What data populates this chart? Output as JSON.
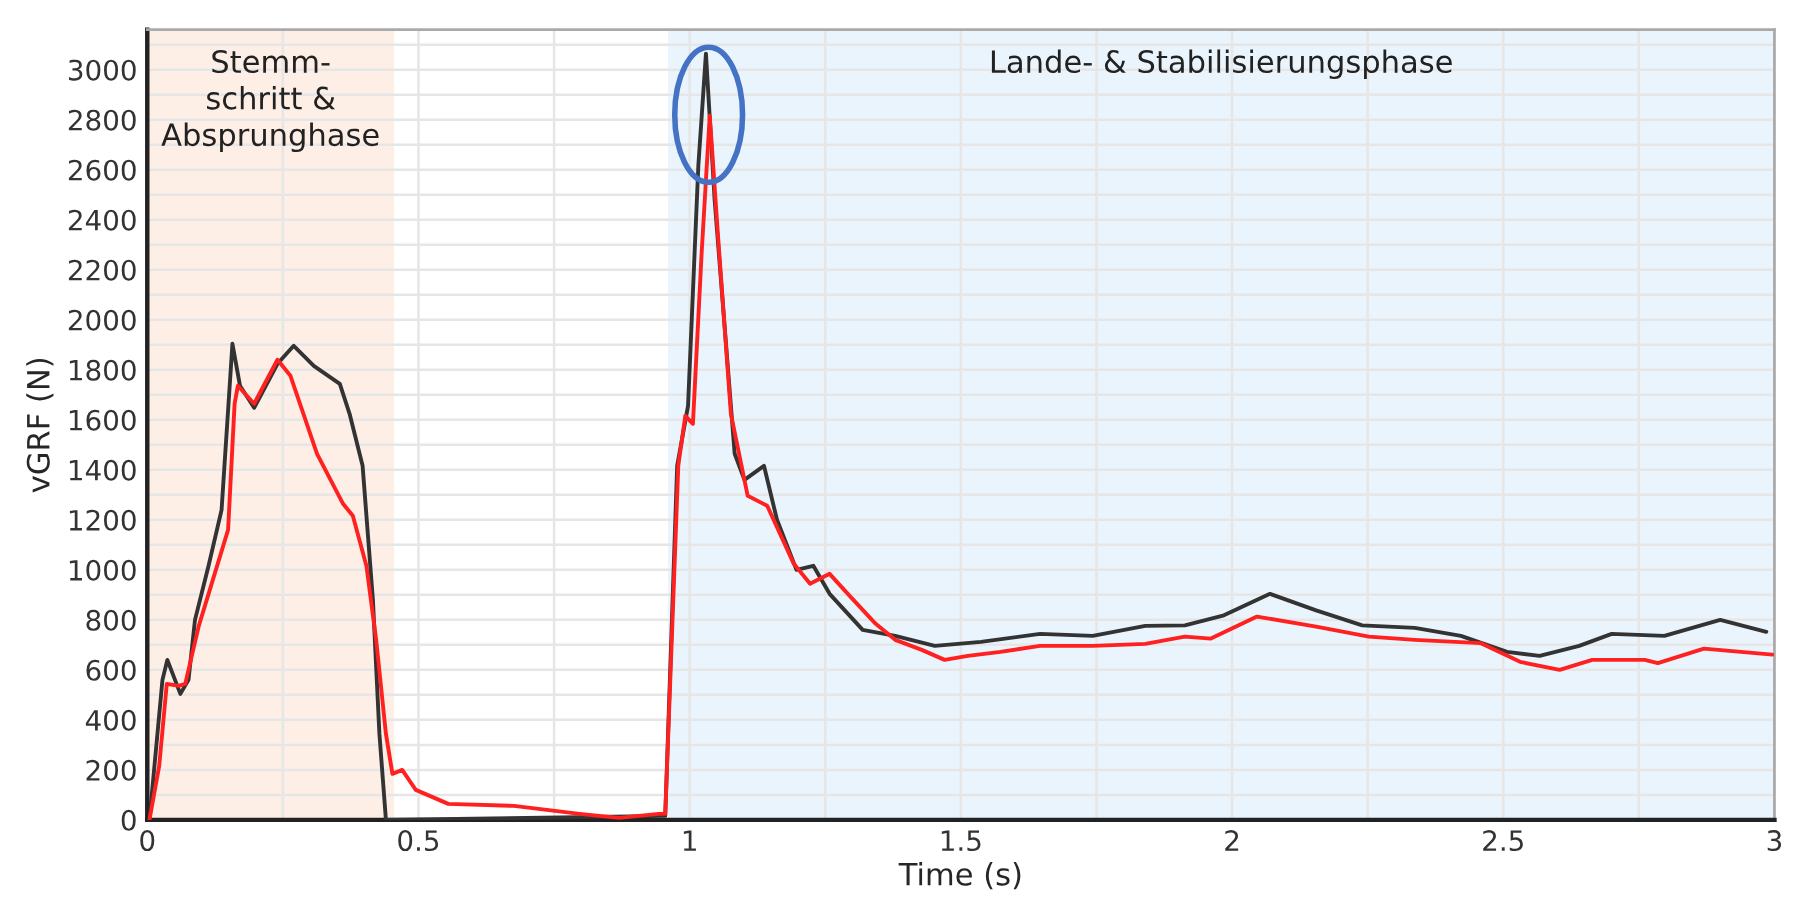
{
  "chart_data": {
    "type": "line",
    "xlabel": "Time (s)",
    "ylabel": "vGRF (N)",
    "xlim": [
      0,
      3
    ],
    "ylim": [
      0,
      3160
    ],
    "xticks": [
      0,
      {
        "value": 0.25,
        "label": null
      },
      0.5,
      {
        "value": 0.75,
        "label": null
      },
      1,
      {
        "value": 1.25,
        "label": null
      },
      1.5,
      {
        "value": 1.75,
        "label": null
      },
      2,
      {
        "value": 2.25,
        "label": null
      },
      2.5,
      {
        "value": 2.75,
        "label": null
      },
      3
    ],
    "yticks": [
      0,
      {
        "value": 100,
        "label": null
      },
      200,
      {
        "value": 300,
        "label": null
      },
      400,
      {
        "value": 500,
        "label": null
      },
      600,
      {
        "value": 700,
        "label": null
      },
      800,
      {
        "value": 900,
        "label": null
      },
      1000,
      {
        "value": 1100,
        "label": null
      },
      1200,
      {
        "value": 1300,
        "label": null
      },
      1400,
      {
        "value": 1500,
        "label": null
      },
      1600,
      {
        "value": 1700,
        "label": null
      },
      1800,
      {
        "value": 1900,
        "label": null
      },
      2000,
      {
        "value": 2100,
        "label": null
      },
      2200,
      {
        "value": 2300,
        "label": null
      },
      2400,
      {
        "value": 2500,
        "label": null
      },
      2600,
      {
        "value": 2700,
        "label": null
      },
      2800,
      {
        "value": 2900,
        "label": null
      },
      3000,
      {
        "value": 3100,
        "label": null
      }
    ],
    "grid": true,
    "bands": [
      {
        "axis": "x",
        "from": 0,
        "to": 0.455,
        "label": "Stemm-\nschritt &\nAbsprunghase",
        "color": "#fdeee6"
      },
      {
        "axis": "x",
        "from": 0.96,
        "to": 3,
        "label": "Lande- & Stabilisierungsphase",
        "color": "#eaf4fc"
      }
    ],
    "series": [
      {
        "color": "#333333",
        "x": [
          0.004,
          0.028,
          0.037,
          0.061,
          0.076,
          0.088,
          0.113,
          0.137,
          0.157,
          0.171,
          0.197,
          0.24,
          0.27,
          0.307,
          0.355,
          0.373,
          0.397,
          0.416,
          0.428,
          0.44,
          0.955,
          0.977,
          0.997,
          1.016,
          1.03,
          1.046,
          1.083,
          1.101,
          1.137,
          1.161,
          1.197,
          1.228,
          1.258,
          1.319,
          1.379,
          1.452,
          1.537,
          1.646,
          1.743,
          1.84,
          1.913,
          1.985,
          2.07,
          2.155,
          2.24,
          2.337,
          2.422,
          2.507,
          2.567,
          2.64,
          2.7,
          2.797,
          2.9,
          2.985
        ],
        "values": [
          0,
          560,
          640,
          504,
          560,
          800,
          1016,
          1240,
          1904,
          1736,
          1648,
          1824,
          1896,
          1816,
          1744,
          1624,
          1416,
          880,
          344,
          0,
          16,
          1416,
          1656,
          2616,
          3064,
          2480,
          1464,
          1360,
          1416,
          1200,
          1000,
          1016,
          904,
          760,
          736,
          696,
          712,
          744,
          736,
          776,
          778,
          818,
          904,
          838,
          778,
          768,
          736,
          672,
          656,
          696,
          744,
          736,
          800,
          752
        ]
      },
      {
        "color": "#ff2020",
        "x": [
          0.004,
          0.022,
          0.036,
          0.058,
          0.07,
          0.095,
          0.149,
          0.161,
          0.167,
          0.197,
          0.24,
          0.264,
          0.313,
          0.361,
          0.379,
          0.404,
          0.422,
          0.44,
          0.452,
          0.47,
          0.495,
          0.555,
          0.676,
          0.797,
          0.87,
          0.943,
          0.955,
          0.979,
          0.992,
          1.006,
          1.022,
          1.037,
          1.052,
          1.076,
          1.107,
          1.143,
          1.192,
          1.222,
          1.258,
          1.295,
          1.343,
          1.379,
          1.428,
          1.47,
          1.513,
          1.573,
          1.646,
          1.743,
          1.84,
          1.913,
          1.961,
          2.046,
          2.155,
          2.252,
          2.337,
          2.458,
          2.531,
          2.604,
          2.664,
          2.761,
          2.785,
          2.87,
          2.996
        ],
        "values": [
          0,
          216,
          544,
          536,
          544,
          776,
          1160,
          1664,
          1736,
          1664,
          1840,
          1776,
          1464,
          1264,
          1216,
          1016,
          720,
          344,
          184,
          200,
          120,
          64,
          56,
          24,
          8,
          24,
          24,
          1416,
          1616,
          1584,
          2264,
          2816,
          2344,
          1624,
          1296,
          1256,
          1024,
          944,
          984,
          896,
          784,
          720,
          680,
          640,
          656,
          672,
          696,
          696,
          704,
          733,
          725,
          813,
          773,
          733,
          720,
          707,
          632,
          600,
          640,
          640,
          627,
          685,
          661
        ]
      }
    ]
  }
}
